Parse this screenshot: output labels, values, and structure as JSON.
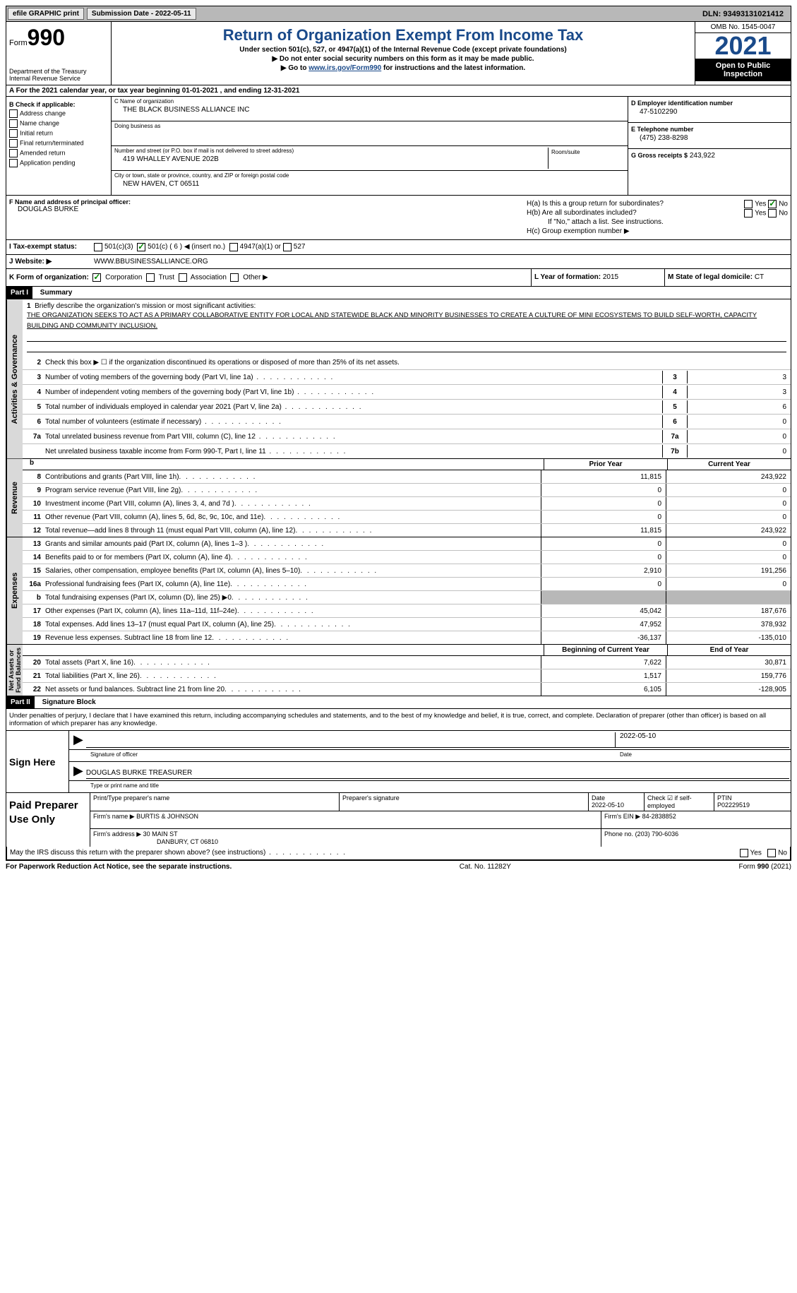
{
  "topbar": {
    "efile": "efile GRAPHIC print",
    "submission": "Submission Date - 2022-05-11",
    "dln": "DLN: 93493131021412"
  },
  "header": {
    "form_label": "Form",
    "form_no": "990",
    "dept": "Department of the Treasury",
    "irs": "Internal Revenue Service",
    "title": "Return of Organization Exempt From Income Tax",
    "sub1": "Under section 501(c), 527, or 4947(a)(1) of the Internal Revenue Code (except private foundations)",
    "sub2": "▶ Do not enter social security numbers on this form as it may be made public.",
    "sub3_pre": "▶ Go to ",
    "sub3_link": "www.irs.gov/Form990",
    "sub3_post": " for instructions and the latest information.",
    "omb": "OMB No. 1545-0047",
    "year": "2021",
    "inspection": "Open to Public Inspection"
  },
  "rowA": {
    "text_pre": "A For the 2021 calendar year, or tax year beginning ",
    "begin": "01-01-2021",
    "mid": " , and ending ",
    "end": "12-31-2021"
  },
  "sectionB": {
    "b_label": "B Check if applicable:",
    "addr_change": "Address change",
    "name_change": "Name change",
    "initial": "Initial return",
    "final": "Final return/terminated",
    "amended": "Amended return",
    "app_pending": "Application pending",
    "c_label": "C Name of organization",
    "org_name": "THE BLACK BUSINESS ALLIANCE INC",
    "dba_label": "Doing business as",
    "dba": "",
    "street_label": "Number and street (or P.O. box if mail is not delivered to street address)",
    "street": "419 WHALLEY AVENUE 202B",
    "room_label": "Room/suite",
    "city_label": "City or town, state or province, country, and ZIP or foreign postal code",
    "city": "NEW HAVEN, CT  06511",
    "d_label": "D Employer identification number",
    "ein": "47-5102290",
    "e_label": "E Telephone number",
    "phone": "(475) 238-8298",
    "g_label": "G Gross receipts $",
    "gross": "243,922"
  },
  "rowF": {
    "f_label": "F Name and address of principal officer:",
    "officer": "DOUGLAS BURKE",
    "h_a": "H(a)  Is this a group return for subordinates?",
    "h_b": "H(b)  Are all subordinates included?",
    "h_note": "If \"No,\" attach a list. See instructions.",
    "h_c": "H(c)  Group exemption number ▶",
    "yes": "Yes",
    "no": "No"
  },
  "rowI": {
    "label": "I   Tax-exempt status:",
    "opt1": "501(c)(3)",
    "opt2": "501(c) ( 6 ) ◀ (insert no.)",
    "opt3": "4947(a)(1) or",
    "opt4": "527"
  },
  "rowJ": {
    "label": "J   Website: ▶",
    "val": "WWW.BBUSINESSALLIANCE.ORG"
  },
  "rowK": {
    "label": "K Form of organization:",
    "corp": "Corporation",
    "trust": "Trust",
    "assoc": "Association",
    "other": "Other ▶",
    "l_label": "L Year of formation:",
    "l_val": "2015",
    "m_label": "M State of legal domicile:",
    "m_val": "CT"
  },
  "part1": {
    "header": "Part I",
    "title": "Summary",
    "line1_label": "Briefly describe the organization's mission or most significant activities:",
    "mission": "THE ORGANIZATION SEEKS TO ACT AS A PRIMARY COLLABORATIVE ENTITY FOR LOCAL AND STATEWIDE BLACK AND MINORITY BUSINESSES TO CREATE A CULTURE OF MINI ECOSYSTEMS TO BUILD SELF-WORTH, CAPACITY BUILDING AND COMMUNITY INCLUSION.",
    "line2": "Check this box ▶ ☐ if the organization discontinued its operations or disposed of more than 25% of its net assets.",
    "l3": "Number of voting members of the governing body (Part VI, line 1a)",
    "v3": "3",
    "l4": "Number of independent voting members of the governing body (Part VI, line 1b)",
    "v4": "3",
    "l5": "Total number of individuals employed in calendar year 2021 (Part V, line 2a)",
    "v5": "6",
    "l6": "Total number of volunteers (estimate if necessary)",
    "v6": "0",
    "l7a": "Total unrelated business revenue from Part VIII, column (C), line 12",
    "v7a": "0",
    "l7b": "Net unrelated business taxable income from Form 990-T, Part I, line 11",
    "v7b": "0",
    "prior_year": "Prior Year",
    "current_year": "Current Year",
    "begin_year": "Beginning of Current Year",
    "end_year": "End of Year",
    "rows_revenue": [
      {
        "n": "8",
        "t": "Contributions and grants (Part VIII, line 1h)",
        "p": "11,815",
        "c": "243,922"
      },
      {
        "n": "9",
        "t": "Program service revenue (Part VIII, line 2g)",
        "p": "0",
        "c": "0"
      },
      {
        "n": "10",
        "t": "Investment income (Part VIII, column (A), lines 3, 4, and 7d )",
        "p": "0",
        "c": "0"
      },
      {
        "n": "11",
        "t": "Other revenue (Part VIII, column (A), lines 5, 6d, 8c, 9c, 10c, and 11e)",
        "p": "0",
        "c": "0"
      },
      {
        "n": "12",
        "t": "Total revenue—add lines 8 through 11 (must equal Part VIII, column (A), line 12)",
        "p": "11,815",
        "c": "243,922"
      }
    ],
    "rows_expenses": [
      {
        "n": "13",
        "t": "Grants and similar amounts paid (Part IX, column (A), lines 1–3 )",
        "p": "0",
        "c": "0"
      },
      {
        "n": "14",
        "t": "Benefits paid to or for members (Part IX, column (A), line 4)",
        "p": "0",
        "c": "0"
      },
      {
        "n": "15",
        "t": "Salaries, other compensation, employee benefits (Part IX, column (A), lines 5–10)",
        "p": "2,910",
        "c": "191,256"
      },
      {
        "n": "16a",
        "t": "Professional fundraising fees (Part IX, column (A), line 11e)",
        "p": "0",
        "c": "0"
      },
      {
        "n": "b",
        "t": "Total fundraising expenses (Part IX, column (D), line 25) ▶0",
        "p": "",
        "c": "",
        "grey": true
      },
      {
        "n": "17",
        "t": "Other expenses (Part IX, column (A), lines 11a–11d, 11f–24e)",
        "p": "45,042",
        "c": "187,676"
      },
      {
        "n": "18",
        "t": "Total expenses. Add lines 13–17 (must equal Part IX, column (A), line 25)",
        "p": "47,952",
        "c": "378,932"
      },
      {
        "n": "19",
        "t": "Revenue less expenses. Subtract line 18 from line 12",
        "p": "-36,137",
        "c": "-135,010"
      }
    ],
    "rows_net": [
      {
        "n": "20",
        "t": "Total assets (Part X, line 16)",
        "p": "7,622",
        "c": "30,871"
      },
      {
        "n": "21",
        "t": "Total liabilities (Part X, line 26)",
        "p": "1,517",
        "c": "159,776"
      },
      {
        "n": "22",
        "t": "Net assets or fund balances. Subtract line 21 from line 20",
        "p": "6,105",
        "c": "-128,905"
      }
    ]
  },
  "part2": {
    "header": "Part II",
    "title": "Signature Block",
    "penalties": "Under penalties of perjury, I declare that I have examined this return, including accompanying schedules and statements, and to the best of my knowledge and belief, it is true, correct, and complete. Declaration of preparer (other than officer) is based on all information of which preparer has any knowledge.",
    "sign_here": "Sign Here",
    "sig_officer_label": "Signature of officer",
    "sig_date": "2022-05-10",
    "date_label": "Date",
    "officer_name": "DOUGLAS BURKE  TREASURER",
    "type_label": "Type or print name and title",
    "paid_prep": "Paid Preparer Use Only",
    "prep_name_label": "Print/Type preparer's name",
    "prep_sig_label": "Preparer's signature",
    "prep_date": "2022-05-10",
    "check_se": "Check ☑ if self-employed",
    "ptin_label": "PTIN",
    "ptin": "P02229519",
    "firm_name_label": "Firm's name    ▶",
    "firm_name": "BURTIS & JOHNSON",
    "firm_ein_label": "Firm's EIN ▶",
    "firm_ein": "84-2838852",
    "firm_addr_label": "Firm's address ▶",
    "firm_addr1": "30 MAIN ST",
    "firm_addr2": "DANBURY, CT  06810",
    "phone_label": "Phone no.",
    "phone": "(203) 790-6036",
    "discuss": "May the IRS discuss this return with the preparer shown above? (see instructions)",
    "yes": "Yes",
    "no": "No"
  },
  "footer": {
    "pra": "For Paperwork Reduction Act Notice, see the separate instructions.",
    "cat": "Cat. No. 11282Y",
    "form": "Form 990 (2021)"
  }
}
